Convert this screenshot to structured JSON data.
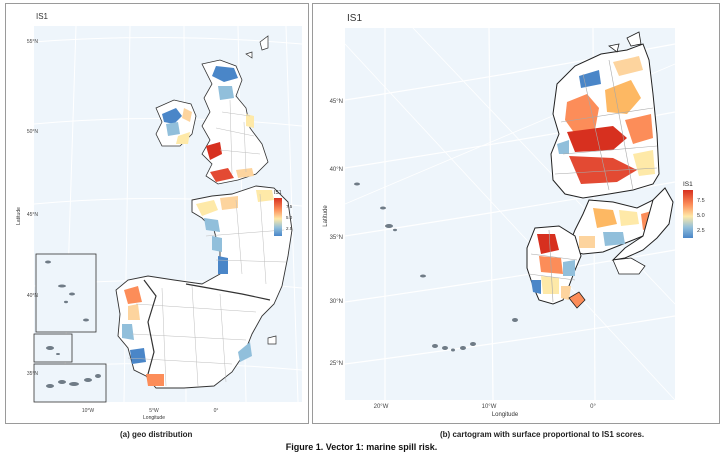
{
  "figure": {
    "caption": "Figure 1. Vector 1: marine spill risk."
  },
  "panel_a": {
    "title": "IS1",
    "caption": "(a) geo distribution",
    "x_axis_label": "Longitude",
    "y_axis_label": "Latitude",
    "lat_ticks": [
      "55°N",
      "50°N",
      "45°N",
      "40°N",
      "35°N"
    ],
    "lon_ticks": [
      "10°W",
      "5°W",
      "0°"
    ],
    "legend": {
      "title": "IS1",
      "ticks": [
        "7.5",
        "5.0",
        "2.5"
      ]
    }
  },
  "panel_b": {
    "title": "IS1",
    "caption": "(b) cartogram with surface proportional to IS1 scores.",
    "x_axis_label": "Longitude",
    "y_axis_label": "Latitude",
    "lat_ticks": [
      "45°N",
      "40°N",
      "35°N",
      "30°N",
      "25°N"
    ],
    "lon_ticks": [
      "20°W",
      "10°W",
      "0°"
    ],
    "legend": {
      "title": "IS1",
      "ticks": [
        "7.5",
        "5.0",
        "2.5"
      ]
    }
  },
  "colors": {
    "sea": "#eef5fb",
    "grid": "#ffffff",
    "land": "#ffffff",
    "border": "#9b9b9b",
    "scale_high": "#d7301f",
    "scale_mid": "#fee9a8",
    "scale_low": "#4a86c8"
  }
}
